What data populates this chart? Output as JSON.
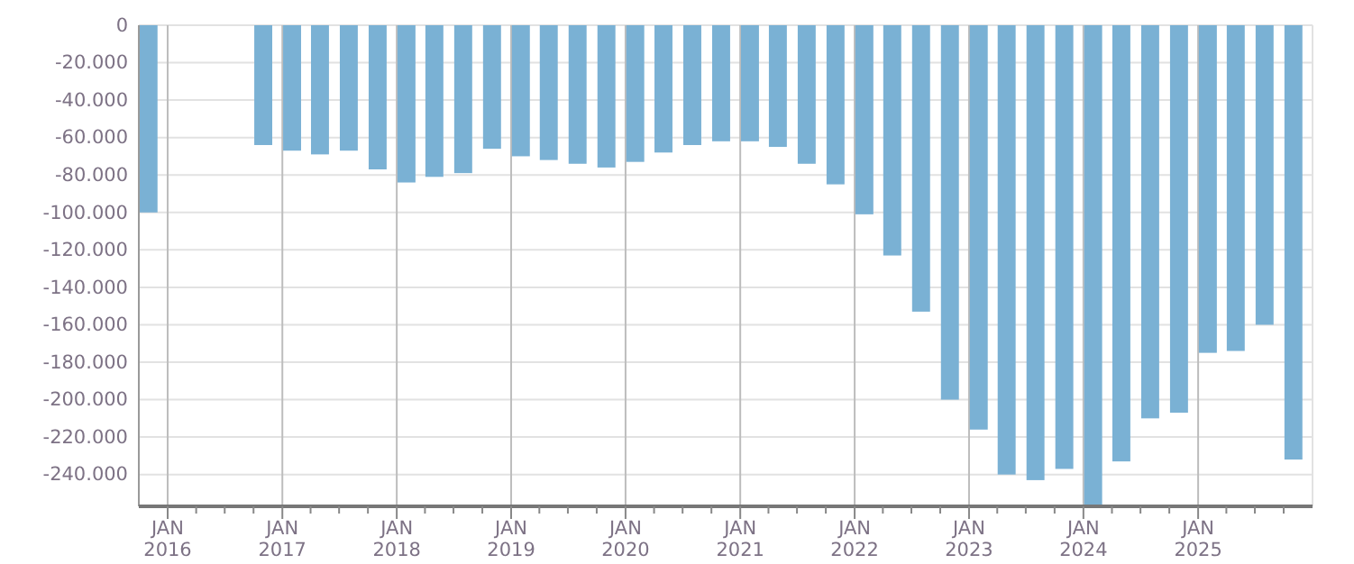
{
  "chart_data": {
    "type": "bar",
    "color": "#7ab1d4",
    "grid": true,
    "x": [
      "2015-11",
      "2016-11",
      "2017-02",
      "2017-05",
      "2017-08",
      "2017-11",
      "2018-02",
      "2018-05",
      "2018-08",
      "2018-11",
      "2019-02",
      "2019-05",
      "2019-08",
      "2019-11",
      "2020-02",
      "2020-05",
      "2020-08",
      "2020-11",
      "2021-02",
      "2021-05",
      "2021-08",
      "2021-11",
      "2022-02",
      "2022-05",
      "2022-08",
      "2022-11",
      "2023-02",
      "2023-05",
      "2023-08",
      "2023-11",
      "2024-02",
      "2024-05",
      "2024-08",
      "2024-11",
      "2025-02",
      "2025-05",
      "2025-08",
      "2025-11"
    ],
    "values": [
      -100000,
      -64000,
      -67000,
      -69000,
      -67000,
      -77000,
      -84000,
      -81000,
      -79000,
      -66000,
      -70000,
      -72000,
      -74000,
      -76000,
      -73000,
      -68000,
      -64000,
      -62000,
      -62000,
      -65000,
      -74000,
      -85000,
      -101000,
      -123000,
      -153000,
      -200000,
      -216000,
      -240000,
      -243000,
      -237000,
      -257000,
      -233000,
      -210000,
      -207000,
      -175000,
      -174000,
      -160000,
      -232000
    ],
    "ylim": [
      -257000,
      0
    ],
    "yticks": [
      {
        "value": -240000,
        "label": "-240.000"
      },
      {
        "value": -220000,
        "label": "-220.000"
      },
      {
        "value": -200000,
        "label": "-200.000"
      },
      {
        "value": -180000,
        "label": "-180.000"
      },
      {
        "value": -160000,
        "label": "-160.000"
      },
      {
        "value": -140000,
        "label": "-140.000"
      },
      {
        "value": -120000,
        "label": "-120.000"
      },
      {
        "value": -100000,
        "label": "-100.000"
      },
      {
        "value": -80000,
        "label": "-80.000"
      },
      {
        "value": -60000,
        "label": "-60.000"
      },
      {
        "value": -40000,
        "label": "-40.000"
      },
      {
        "value": -20000,
        "label": "-20.000"
      },
      0
    ],
    "xlim": [
      "2015-10",
      "2026-01"
    ],
    "xticks": [
      {
        "value": "2016-01",
        "label": "JAN\n2016"
      },
      {
        "value": "2016-04",
        "label": null
      },
      {
        "value": "2016-07",
        "label": null
      },
      {
        "value": "2016-10",
        "label": null
      },
      {
        "value": "2017-01",
        "label": "JAN\n2017"
      },
      {
        "value": "2017-04",
        "label": null
      },
      {
        "value": "2017-07",
        "label": null
      },
      {
        "value": "2017-10",
        "label": null
      },
      {
        "value": "2018-01",
        "label": "JAN\n2018"
      },
      {
        "value": "2018-04",
        "label": null
      },
      {
        "value": "2018-07",
        "label": null
      },
      {
        "value": "2018-10",
        "label": null
      },
      {
        "value": "2019-01",
        "label": "JAN\n2019"
      },
      {
        "value": "2019-04",
        "label": null
      },
      {
        "value": "2019-07",
        "label": null
      },
      {
        "value": "2019-10",
        "label": null
      },
      {
        "value": "2020-01",
        "label": "JAN\n2020"
      },
      {
        "value": "2020-04",
        "label": null
      },
      {
        "value": "2020-07",
        "label": null
      },
      {
        "value": "2020-10",
        "label": null
      },
      {
        "value": "2021-01",
        "label": "JAN\n2021"
      },
      {
        "value": "2021-04",
        "label": null
      },
      {
        "value": "2021-07",
        "label": null
      },
      {
        "value": "2021-10",
        "label": null
      },
      {
        "value": "2022-01",
        "label": "JAN\n2022"
      },
      {
        "value": "2022-04",
        "label": null
      },
      {
        "value": "2022-07",
        "label": null
      },
      {
        "value": "2022-10",
        "label": null
      },
      {
        "value": "2023-01",
        "label": "JAN\n2023"
      },
      {
        "value": "2023-04",
        "label": null
      },
      {
        "value": "2023-07",
        "label": null
      },
      {
        "value": "2023-10",
        "label": null
      },
      {
        "value": "2024-01",
        "label": "JAN\n2024"
      },
      {
        "value": "2024-04",
        "label": null
      },
      {
        "value": "2024-07",
        "label": null
      },
      {
        "value": "2024-10",
        "label": null
      },
      {
        "value": "2025-01",
        "label": "JAN\n2025"
      },
      {
        "value": "2025-04",
        "label": null
      },
      {
        "value": "2025-07",
        "label": null
      },
      {
        "value": "2025-10",
        "label": null
      }
    ]
  }
}
